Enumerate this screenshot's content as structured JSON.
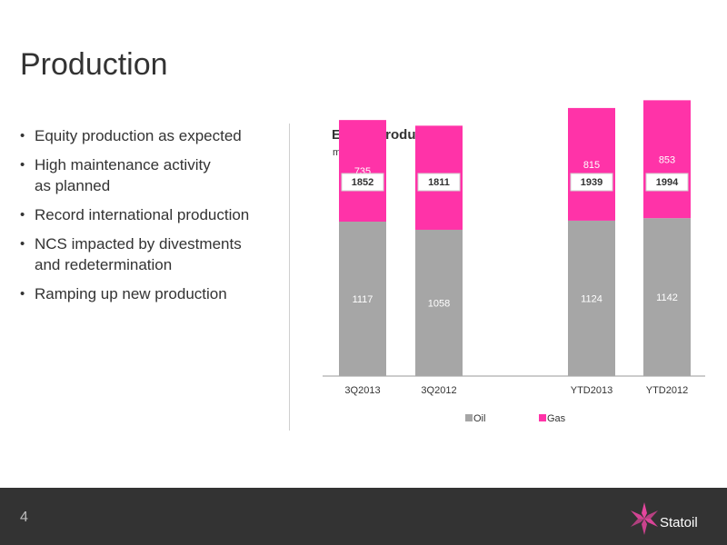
{
  "slide": {
    "title": "Production",
    "bullets": [
      "Equity production as expected",
      "High maintenance activity\nas planned",
      "Record international production",
      "NCS impacted by divestments\nand redetermination",
      "Ramping up new production"
    ],
    "page_number": "4",
    "logo_text": "Statoil"
  },
  "chart_title": "Equity production",
  "chart_unit": "mboe/d",
  "colors": {
    "oil": "#a6a6a6",
    "gas": "#ff33a8",
    "footer": "#333333",
    "logo": "#e5469e"
  },
  "chart_data": {
    "type": "bar",
    "stacked": true,
    "title": "Equity production",
    "ylabel": "mboe/d",
    "ylim": [
      0,
      2200
    ],
    "categories": [
      "3Q2013",
      "3Q2012",
      "YTD2013",
      "YTD2012"
    ],
    "series": [
      {
        "name": "Oil",
        "values": [
          1117,
          1058,
          1124,
          1142
        ]
      },
      {
        "name": "Gas",
        "values": [
          735,
          753,
          815,
          853
        ]
      }
    ],
    "totals": [
      1852,
      1811,
      1939,
      1994
    ],
    "legend": "bottom"
  }
}
